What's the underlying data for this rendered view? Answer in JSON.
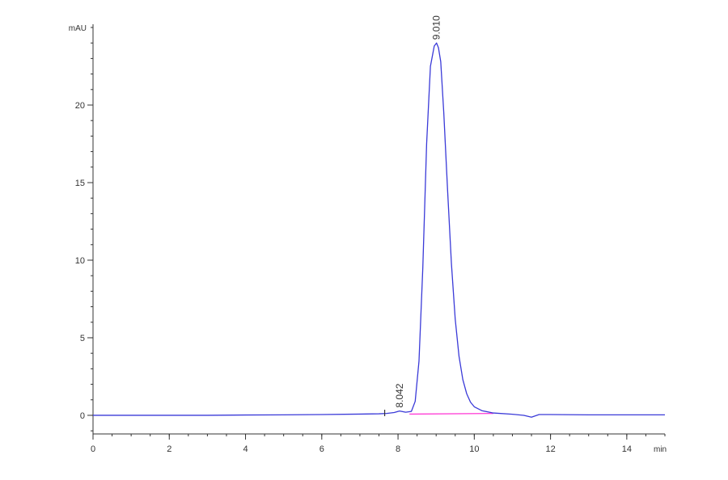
{
  "chart_data": {
    "type": "line",
    "title": "",
    "xlabel": "min",
    "ylabel": "mAU",
    "xlim": [
      0,
      15
    ],
    "ylim": [
      -1.2,
      25
    ],
    "x_ticks": [
      0,
      2,
      4,
      6,
      8,
      10,
      12,
      14
    ],
    "x_tick_labels": [
      "0",
      "2",
      "4",
      "6",
      "8",
      "10",
      "12",
      "14"
    ],
    "y_ticks": [
      0,
      5,
      10,
      15,
      20
    ],
    "y_tick_labels": [
      "0",
      "5",
      "10",
      "15",
      "20"
    ],
    "grid": false,
    "colors": {
      "signal": "#3a3ad8",
      "baseline": "#ff3cd6",
      "axis": "#333333"
    },
    "series": [
      {
        "x": [
          0,
          1,
          2,
          3,
          4,
          5,
          6,
          7,
          7.5,
          7.7,
          7.9,
          8.04,
          8.2,
          8.35,
          8.45,
          8.55,
          8.65,
          8.75,
          8.85,
          8.95,
          9.01,
          9.06,
          9.12,
          9.2,
          9.3,
          9.4,
          9.5,
          9.6,
          9.7,
          9.8,
          9.9,
          10.0,
          10.2,
          10.5,
          11.0,
          11.3,
          11.5,
          11.7,
          12.0,
          13.0,
          14.0,
          15.0
        ],
        "y": [
          0.0,
          0.0,
          0.0,
          0.0,
          0.02,
          0.03,
          0.05,
          0.08,
          0.1,
          0.12,
          0.18,
          0.28,
          0.2,
          0.25,
          0.9,
          3.5,
          9.5,
          17.5,
          22.5,
          23.8,
          24.0,
          23.7,
          22.8,
          19.5,
          14.5,
          9.8,
          6.2,
          3.8,
          2.3,
          1.4,
          0.85,
          0.55,
          0.3,
          0.15,
          0.07,
          0.0,
          -0.12,
          0.05,
          0.05,
          0.03,
          0.03,
          0.03
        ]
      }
    ],
    "baseline_segment": {
      "x": [
        8.3,
        10.5
      ],
      "y": [
        0.08,
        0.12
      ]
    },
    "annotations": [
      {
        "text": "8.042",
        "x": 8.04,
        "y": 0.28
      },
      {
        "text": "9.010",
        "x": 9.01,
        "y": 24.0
      }
    ]
  }
}
